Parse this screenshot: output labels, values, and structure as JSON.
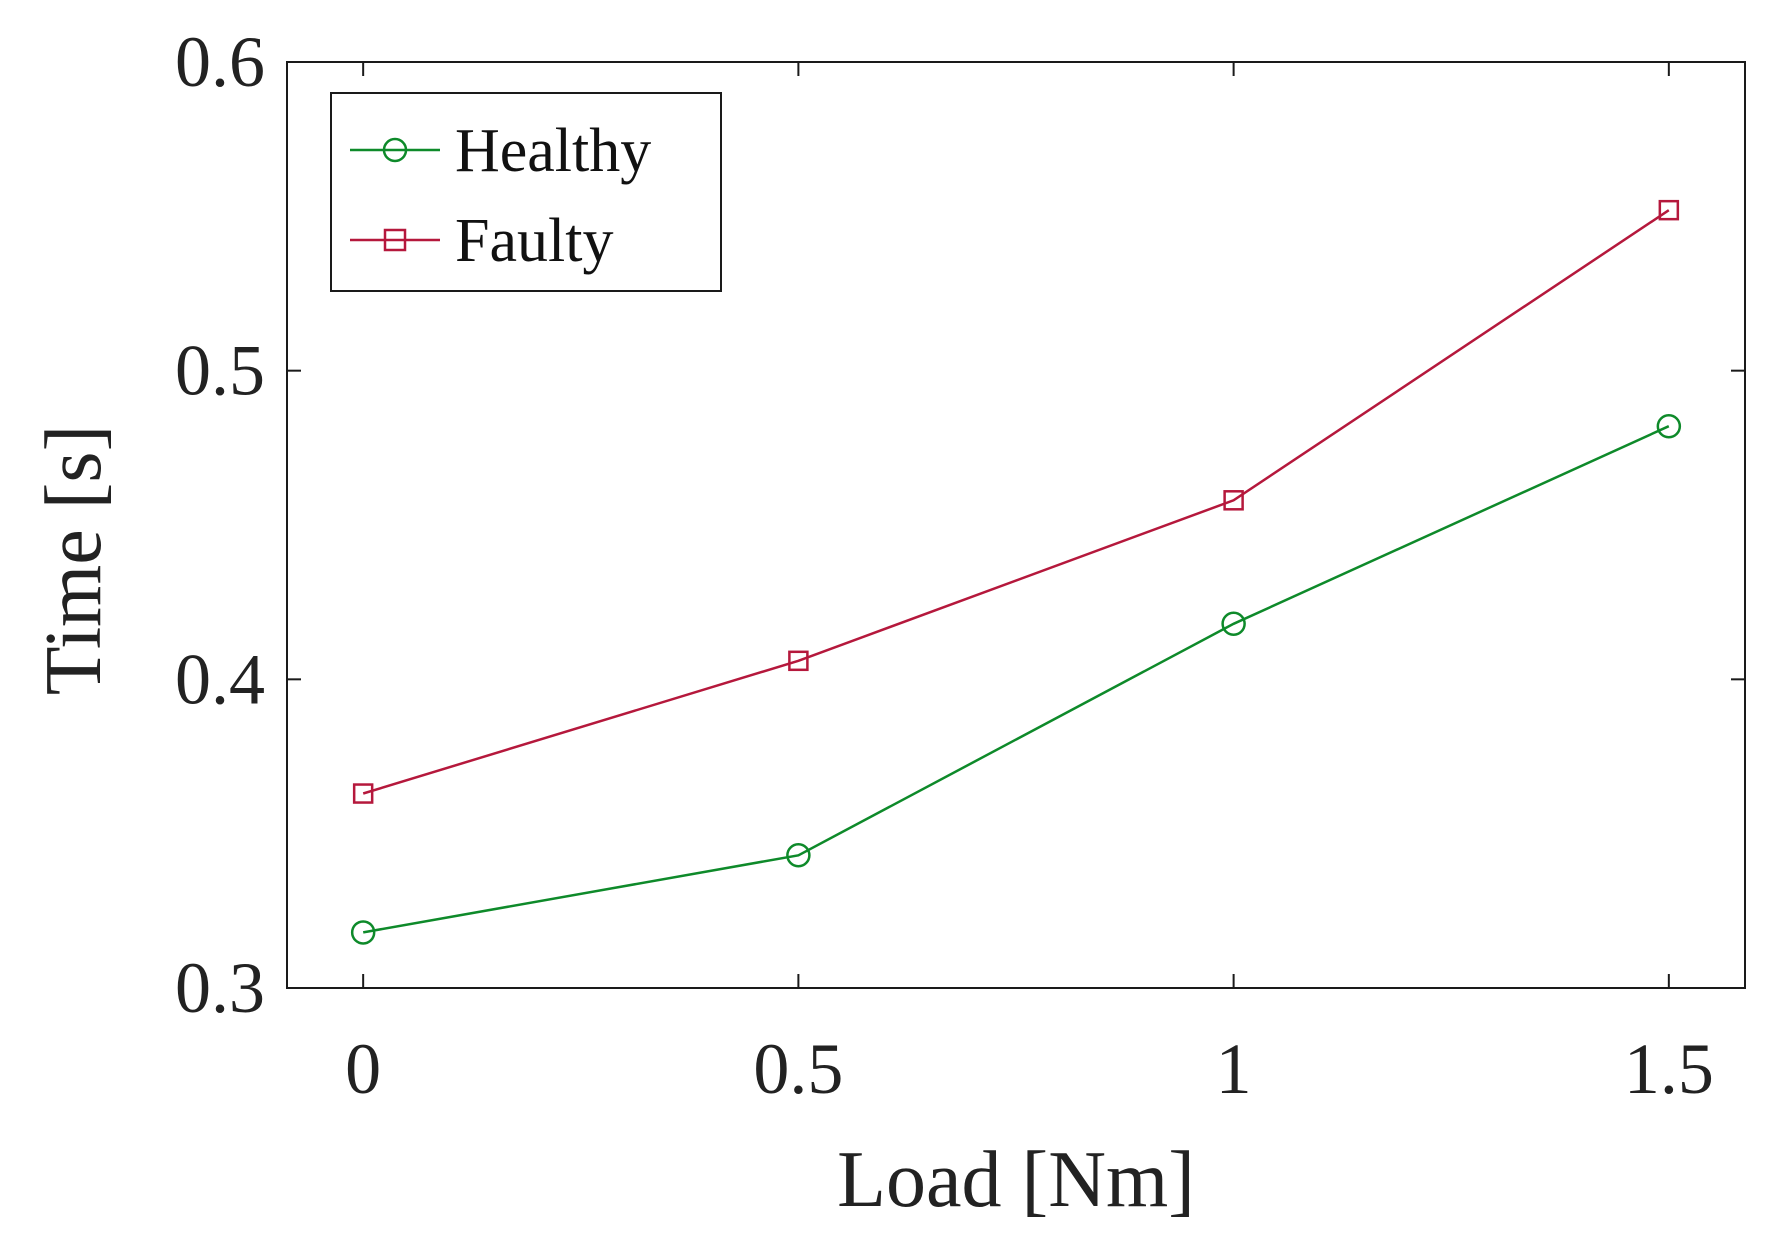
{
  "chart_data": {
    "type": "line",
    "title": "",
    "xlabel": "Load [Nm]",
    "ylabel": "Time [s]",
    "x": [
      0,
      0.5,
      1,
      1.5
    ],
    "xticks": [
      "0",
      "0.5",
      "1",
      "1.5"
    ],
    "yticks": [
      "0.3",
      "0.4",
      "0.5",
      "0.6"
    ],
    "xlim": [
      -0.0875,
      1.5875
    ],
    "ylim": [
      0.3,
      0.6
    ],
    "grid": false,
    "legend_position": "top-left",
    "series": [
      {
        "name": "Healthy",
        "values": [
          0.318,
          0.343,
          0.418,
          0.482
        ],
        "color": "#0e8a2a",
        "marker": "circle"
      },
      {
        "name": "Faulty",
        "values": [
          0.363,
          0.406,
          0.458,
          0.552
        ],
        "color": "#b5183c",
        "marker": "square"
      }
    ]
  }
}
